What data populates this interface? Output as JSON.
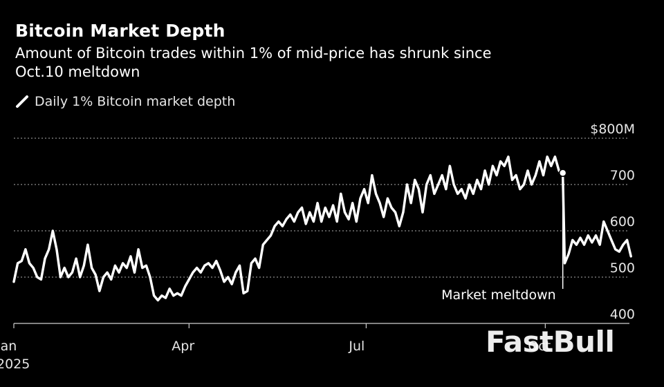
{
  "header": {
    "title": "Bitcoin Market Depth",
    "subtitle": "Amount of Bitcoin trades within 1% of mid-price has shrunk since Oct.10 meltdown"
  },
  "legend": {
    "label": "Daily 1% Bitcoin market depth"
  },
  "watermark": "FastBull",
  "colors": {
    "background": "#000000",
    "line": "#ffffff",
    "grid": "#8c8c8c"
  },
  "chart_data": {
    "type": "line",
    "title": "Bitcoin Market Depth",
    "subtitle": "Amount of Bitcoin trades within 1% of mid-price has shrunk since Oct.10 meltdown",
    "xlabel": "",
    "ylabel": "",
    "xlim": [
      "2025-01-01",
      "2025-11-15"
    ],
    "ylim": [
      400,
      800
    ],
    "y_ticks": [
      {
        "value": 800,
        "label": "$800M"
      },
      {
        "value": 700,
        "label": "700"
      },
      {
        "value": 600,
        "label": "600"
      },
      {
        "value": 500,
        "label": "500"
      },
      {
        "value": 400,
        "label": "400"
      }
    ],
    "x_ticks": [
      {
        "date": "2025-01-01",
        "label": "Jan",
        "sublabel": "2025"
      },
      {
        "date": "2025-04-01",
        "label": "Apr"
      },
      {
        "date": "2025-07-01",
        "label": "Jul"
      },
      {
        "date": "2025-10-01",
        "label": "Oct"
      }
    ],
    "grid": true,
    "legend": "top-left",
    "series": [
      {
        "name": "Daily 1% Bitcoin market depth",
        "points": [
          [
            "2025-01-01",
            490
          ],
          [
            "2025-01-03",
            530
          ],
          [
            "2025-01-05",
            535
          ],
          [
            "2025-01-07",
            560
          ],
          [
            "2025-01-09",
            530
          ],
          [
            "2025-01-11",
            520
          ],
          [
            "2025-01-13",
            500
          ],
          [
            "2025-01-15",
            495
          ],
          [
            "2025-01-17",
            540
          ],
          [
            "2025-01-19",
            560
          ],
          [
            "2025-01-21",
            600
          ],
          [
            "2025-01-23",
            560
          ],
          [
            "2025-01-25",
            500
          ],
          [
            "2025-01-27",
            520
          ],
          [
            "2025-01-29",
            500
          ],
          [
            "2025-01-31",
            510
          ],
          [
            "2025-02-02",
            540
          ],
          [
            "2025-02-04",
            500
          ],
          [
            "2025-02-06",
            525
          ],
          [
            "2025-02-08",
            570
          ],
          [
            "2025-02-10",
            520
          ],
          [
            "2025-02-12",
            505
          ],
          [
            "2025-02-14",
            470
          ],
          [
            "2025-02-16",
            500
          ],
          [
            "2025-02-18",
            510
          ],
          [
            "2025-02-20",
            495
          ],
          [
            "2025-02-22",
            525
          ],
          [
            "2025-02-24",
            510
          ],
          [
            "2025-02-26",
            530
          ],
          [
            "2025-02-28",
            520
          ],
          [
            "2025-03-02",
            545
          ],
          [
            "2025-03-04",
            510
          ],
          [
            "2025-03-06",
            560
          ],
          [
            "2025-03-08",
            520
          ],
          [
            "2025-03-10",
            525
          ],
          [
            "2025-03-12",
            500
          ],
          [
            "2025-03-14",
            460
          ],
          [
            "2025-03-16",
            450
          ],
          [
            "2025-03-18",
            460
          ],
          [
            "2025-03-20",
            455
          ],
          [
            "2025-03-22",
            475
          ],
          [
            "2025-03-24",
            460
          ],
          [
            "2025-03-26",
            465
          ],
          [
            "2025-03-28",
            460
          ],
          [
            "2025-03-30",
            480
          ],
          [
            "2025-04-01",
            495
          ],
          [
            "2025-04-03",
            510
          ],
          [
            "2025-04-05",
            520
          ],
          [
            "2025-04-07",
            510
          ],
          [
            "2025-04-09",
            525
          ],
          [
            "2025-04-11",
            530
          ],
          [
            "2025-04-13",
            520
          ],
          [
            "2025-04-15",
            535
          ],
          [
            "2025-04-17",
            515
          ],
          [
            "2025-04-19",
            490
          ],
          [
            "2025-04-21",
            500
          ],
          [
            "2025-04-23",
            485
          ],
          [
            "2025-04-25",
            510
          ],
          [
            "2025-04-27",
            525
          ],
          [
            "2025-04-29",
            465
          ],
          [
            "2025-05-01",
            470
          ],
          [
            "2025-05-03",
            530
          ],
          [
            "2025-05-05",
            540
          ],
          [
            "2025-05-07",
            520
          ],
          [
            "2025-05-09",
            570
          ],
          [
            "2025-05-11",
            580
          ],
          [
            "2025-05-13",
            590
          ],
          [
            "2025-05-15",
            610
          ],
          [
            "2025-05-17",
            620
          ],
          [
            "2025-05-19",
            610
          ],
          [
            "2025-05-21",
            625
          ],
          [
            "2025-05-23",
            635
          ],
          [
            "2025-05-25",
            620
          ],
          [
            "2025-05-27",
            640
          ],
          [
            "2025-05-29",
            650
          ],
          [
            "2025-05-31",
            615
          ],
          [
            "2025-06-02",
            640
          ],
          [
            "2025-06-04",
            620
          ],
          [
            "2025-06-06",
            660
          ],
          [
            "2025-06-08",
            620
          ],
          [
            "2025-06-10",
            650
          ],
          [
            "2025-06-12",
            630
          ],
          [
            "2025-06-14",
            655
          ],
          [
            "2025-06-16",
            620
          ],
          [
            "2025-06-18",
            680
          ],
          [
            "2025-06-20",
            640
          ],
          [
            "2025-06-22",
            625
          ],
          [
            "2025-06-24",
            660
          ],
          [
            "2025-06-26",
            620
          ],
          [
            "2025-06-28",
            670
          ],
          [
            "2025-06-30",
            690
          ],
          [
            "2025-07-02",
            660
          ],
          [
            "2025-07-04",
            720
          ],
          [
            "2025-07-06",
            680
          ],
          [
            "2025-07-08",
            660
          ],
          [
            "2025-07-10",
            630
          ],
          [
            "2025-07-12",
            670
          ],
          [
            "2025-07-14",
            650
          ],
          [
            "2025-07-16",
            640
          ],
          [
            "2025-07-18",
            610
          ],
          [
            "2025-07-20",
            640
          ],
          [
            "2025-07-22",
            700
          ],
          [
            "2025-07-24",
            660
          ],
          [
            "2025-07-26",
            710
          ],
          [
            "2025-07-28",
            690
          ],
          [
            "2025-07-30",
            640
          ],
          [
            "2025-08-01",
            700
          ],
          [
            "2025-08-03",
            720
          ],
          [
            "2025-08-05",
            680
          ],
          [
            "2025-08-07",
            700
          ],
          [
            "2025-08-09",
            720
          ],
          [
            "2025-08-11",
            690
          ],
          [
            "2025-08-13",
            740
          ],
          [
            "2025-08-15",
            700
          ],
          [
            "2025-08-17",
            680
          ],
          [
            "2025-08-19",
            690
          ],
          [
            "2025-08-21",
            670
          ],
          [
            "2025-08-23",
            700
          ],
          [
            "2025-08-25",
            680
          ],
          [
            "2025-08-27",
            710
          ],
          [
            "2025-08-29",
            690
          ],
          [
            "2025-08-31",
            730
          ],
          [
            "2025-09-02",
            700
          ],
          [
            "2025-09-04",
            740
          ],
          [
            "2025-09-06",
            720
          ],
          [
            "2025-09-08",
            750
          ],
          [
            "2025-09-10",
            740
          ],
          [
            "2025-09-12",
            760
          ],
          [
            "2025-09-14",
            710
          ],
          [
            "2025-09-16",
            720
          ],
          [
            "2025-09-18",
            690
          ],
          [
            "2025-09-20",
            700
          ],
          [
            "2025-09-22",
            730
          ],
          [
            "2025-09-24",
            700
          ],
          [
            "2025-09-26",
            720
          ],
          [
            "2025-09-28",
            750
          ],
          [
            "2025-09-30",
            720
          ],
          [
            "2025-10-02",
            760
          ],
          [
            "2025-10-04",
            740
          ],
          [
            "2025-10-06",
            760
          ],
          [
            "2025-10-08",
            730
          ],
          [
            "2025-10-10",
            720
          ],
          [
            "2025-10-11",
            530
          ],
          [
            "2025-10-13",
            550
          ],
          [
            "2025-10-15",
            580
          ],
          [
            "2025-10-17",
            570
          ],
          [
            "2025-10-19",
            585
          ],
          [
            "2025-10-21",
            570
          ],
          [
            "2025-10-23",
            590
          ],
          [
            "2025-10-25",
            575
          ],
          [
            "2025-10-27",
            590
          ],
          [
            "2025-10-29",
            570
          ],
          [
            "2025-10-31",
            620
          ],
          [
            "2025-11-02",
            600
          ],
          [
            "2025-11-04",
            580
          ],
          [
            "2025-11-06",
            560
          ],
          [
            "2025-11-08",
            555
          ],
          [
            "2025-11-10",
            570
          ],
          [
            "2025-11-12",
            580
          ],
          [
            "2025-11-14",
            545
          ]
        ]
      }
    ],
    "annotations": [
      {
        "label": "Market meltdown",
        "date": "2025-10-10",
        "value": 725
      }
    ]
  }
}
